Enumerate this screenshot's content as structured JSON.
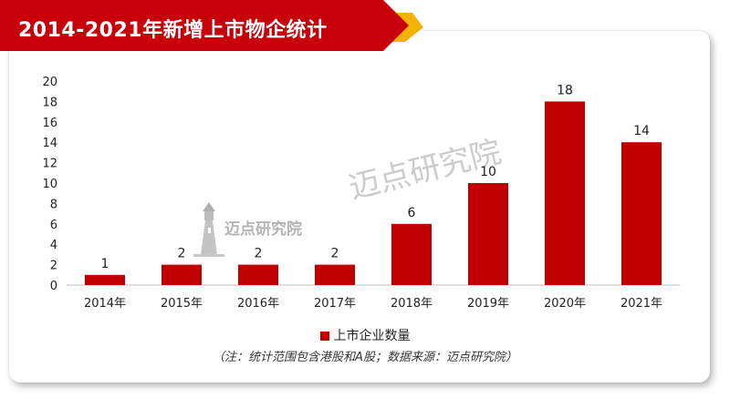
{
  "title": "2014-2021年新增上市物企统计",
  "note": "（注：统计范围包含港股和A股；数据来源：迈点研究院）",
  "watermark": {
    "small": "迈点研究院",
    "big": "迈点研究院",
    "icon": "lighthouse-icon"
  },
  "colors": {
    "accent": "#c00000",
    "title_band": "#c8000a",
    "title_tail": "#f2b200"
  },
  "chart_data": {
    "type": "bar",
    "categories": [
      "2014年",
      "2015年",
      "2016年",
      "2017年",
      "2018年",
      "2019年",
      "2020年",
      "2021年"
    ],
    "series": [
      {
        "name": "上市企业数量",
        "values": [
          1,
          2,
          2,
          2,
          6,
          10,
          18,
          14
        ]
      }
    ],
    "ylim": [
      0,
      20
    ],
    "yticks": [
      0,
      2,
      4,
      6,
      8,
      10,
      12,
      14,
      16,
      18,
      20
    ],
    "data_labels": true,
    "grid": false,
    "legend": "bottom"
  }
}
